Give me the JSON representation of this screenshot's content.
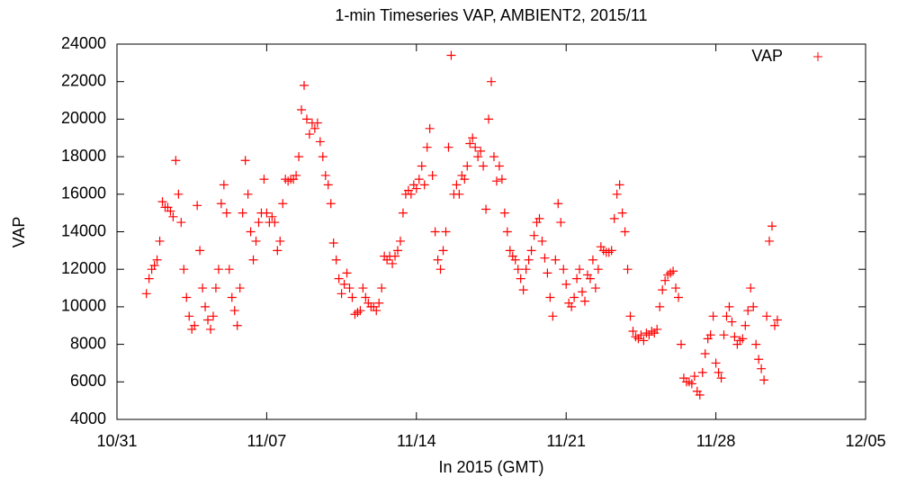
{
  "chart_data": {
    "type": "scatter",
    "title": "1-min Timeseries VAP, AMBIENT2, 2015/11",
    "xlabel": "In 2015 (GMT)",
    "ylabel": "VAP",
    "xlim": [
      0,
      840
    ],
    "xticks": [
      {
        "value": 0,
        "label": "10/31"
      },
      {
        "value": 168,
        "label": "11/07"
      },
      {
        "value": 336,
        "label": "11/14"
      },
      {
        "value": 504,
        "label": "11/21"
      },
      {
        "value": 672,
        "label": "11/28"
      },
      {
        "value": 840,
        "label": "12/05"
      }
    ],
    "ylim": [
      4000,
      24000
    ],
    "yticks": [
      4000,
      6000,
      8000,
      10000,
      12000,
      14000,
      16000,
      18000,
      20000,
      22000,
      24000
    ],
    "legend": "top-right",
    "series": [
      {
        "name": "VAP",
        "color": "#ff0000",
        "x": [
          33,
          36,
          39,
          42,
          45,
          48,
          51,
          54,
          57,
          60,
          63,
          66,
          69,
          72,
          75,
          78,
          81,
          84,
          87,
          90,
          93,
          96,
          99,
          102,
          105,
          108,
          111,
          114,
          117,
          120,
          123,
          126,
          129,
          132,
          135,
          138,
          141,
          144,
          147,
          150,
          153,
          156,
          159,
          162,
          165,
          168,
          171,
          174,
          177,
          180,
          183,
          186,
          189,
          192,
          195,
          198,
          201,
          204,
          207,
          210,
          213,
          216,
          219,
          222,
          225,
          228,
          231,
          234,
          237,
          240,
          243,
          246,
          249,
          252,
          255,
          258,
          261,
          264,
          267,
          270,
          273,
          276,
          279,
          282,
          285,
          288,
          291,
          294,
          297,
          300,
          303,
          306,
          309,
          312,
          315,
          318,
          321,
          324,
          327,
          330,
          333,
          336,
          339,
          342,
          345,
          348,
          351,
          354,
          357,
          360,
          363,
          366,
          369,
          372,
          375,
          378,
          381,
          384,
          387,
          390,
          393,
          396,
          399,
          402,
          405,
          408,
          411,
          414,
          417,
          420,
          423,
          426,
          429,
          432,
          435,
          438,
          441,
          444,
          447,
          450,
          453,
          456,
          459,
          462,
          465,
          468,
          471,
          474,
          477,
          480,
          483,
          486,
          489,
          492,
          495,
          498,
          501,
          504,
          507,
          510,
          513,
          516,
          519,
          522,
          525,
          528,
          531,
          534,
          537,
          540,
          543,
          546,
          549,
          552,
          555,
          558,
          561,
          564,
          567,
          570,
          573,
          576,
          579,
          582,
          585,
          588,
          591,
          594,
          597,
          600,
          603,
          606,
          609,
          612,
          615,
          618,
          621,
          624,
          627,
          630,
          633,
          636,
          639,
          642,
          645,
          648,
          651,
          654,
          657,
          660,
          663,
          666,
          669,
          672,
          675,
          678,
          681,
          684,
          687,
          690,
          693,
          696,
          699,
          702,
          705,
          708,
          711,
          714,
          717,
          720,
          723,
          726,
          729,
          732,
          735,
          738,
          741
        ],
        "values": [
          10700,
          11500,
          12000,
          12200,
          12500,
          13500,
          15600,
          15300,
          15300,
          15100,
          14800,
          17800,
          16000,
          14500,
          12000,
          10500,
          9500,
          8800,
          9000,
          15400,
          13000,
          11000,
          10000,
          9300,
          8800,
          9500,
          11000,
          12000,
          15500,
          16500,
          15000,
          12000,
          10500,
          9800,
          9000,
          11000,
          15000,
          17800,
          16000,
          14000,
          12500,
          13500,
          14500,
          15000,
          16800,
          15000,
          14500,
          14800,
          14500,
          13000,
          13500,
          15500,
          16800,
          16700,
          16800,
          16800,
          17000,
          18000,
          20500,
          21800,
          20000,
          19200,
          19800,
          19500,
          19800,
          18800,
          18000,
          17000,
          16500,
          15500,
          13400,
          12500,
          11500,
          10700,
          11200,
          11800,
          11000,
          10500,
          9600,
          9700,
          9800,
          11000,
          10500,
          10200,
          10000,
          10000,
          9800,
          10200,
          11000,
          12700,
          12500,
          12700,
          12300,
          12700,
          13000,
          13500,
          15000,
          16000,
          16200,
          16000,
          16500,
          16300,
          16800,
          17500,
          16500,
          18500,
          19500,
          17000,
          14000,
          12500,
          12000,
          13000,
          14000,
          18500,
          23400,
          16000,
          16500,
          16000,
          17000,
          16800,
          17500,
          18700,
          19000,
          18500,
          18000,
          18300,
          17500,
          15200,
          20000,
          22000,
          18000,
          16700,
          17500,
          16800,
          15000,
          14000,
          13000,
          12700,
          12500,
          12000,
          11500,
          10900,
          12000,
          12500,
          13000,
          13800,
          14500,
          14700,
          13500,
          12600,
          11800,
          10500,
          9500,
          12500,
          15500,
          14500,
          12000,
          11200,
          10200,
          10000,
          10500,
          11500,
          12000,
          10800,
          10300,
          11700,
          11500,
          12500,
          11000,
          12000,
          13200,
          13000,
          12900,
          12900,
          13000,
          14700,
          16000,
          16500,
          15000,
          14000,
          12000,
          9500,
          8700,
          8400,
          8300,
          8500,
          8200,
          8600,
          8500,
          8700,
          8600,
          8800,
          10000,
          10900,
          11400,
          11700,
          11800,
          11900,
          11000,
          10500,
          8000,
          6200,
          6000,
          6000,
          5900,
          6300,
          5500,
          5300,
          6500,
          7500,
          8300,
          8500,
          9500,
          7000,
          6500,
          6200,
          8500,
          9500,
          10000,
          9200,
          8400,
          8000,
          8200,
          8300,
          9000,
          9800,
          11000,
          10000,
          8000,
          7200,
          6700,
          6100,
          9500,
          13500,
          14300,
          9000,
          9300
        ]
      }
    ]
  }
}
